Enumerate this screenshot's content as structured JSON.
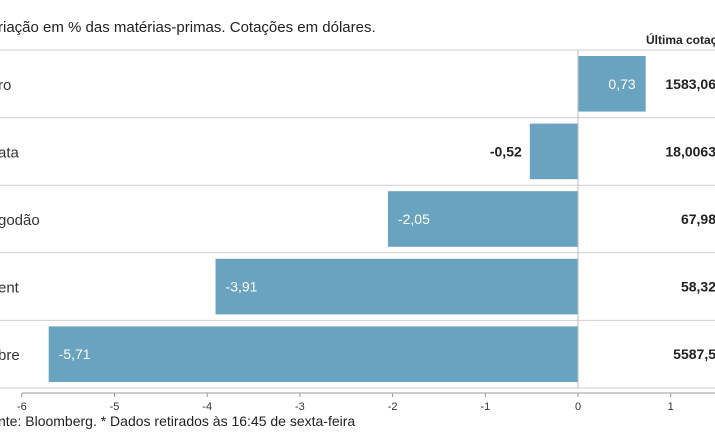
{
  "chart_data": {
    "type": "bar",
    "orientation": "horizontal",
    "subtitle": "riação em % das matérias-primas. Cotações em dólares.",
    "column_header": "Última cotaç",
    "categories": [
      "ro",
      "ata",
      "godão",
      "ent",
      "bre"
    ],
    "values": [
      0.73,
      -0.52,
      -2.05,
      -3.91,
      -5.71
    ],
    "value_labels": [
      "0,73",
      "-0,52",
      "-2,05",
      "-3,91",
      "-5,71"
    ],
    "last_quote": [
      "1583,06",
      "18,0063",
      "67,98",
      "58,32",
      "5587,5"
    ],
    "xlim": [
      -6,
      1
    ],
    "x_ticks": [
      -6,
      -5,
      -4,
      -3,
      -2,
      -1,
      0,
      1
    ],
    "grid": false,
    "bar_color": "#6aa3bf",
    "source": "nte: Bloomberg.  * Dados retirados às 16:45 de sexta-feira"
  }
}
